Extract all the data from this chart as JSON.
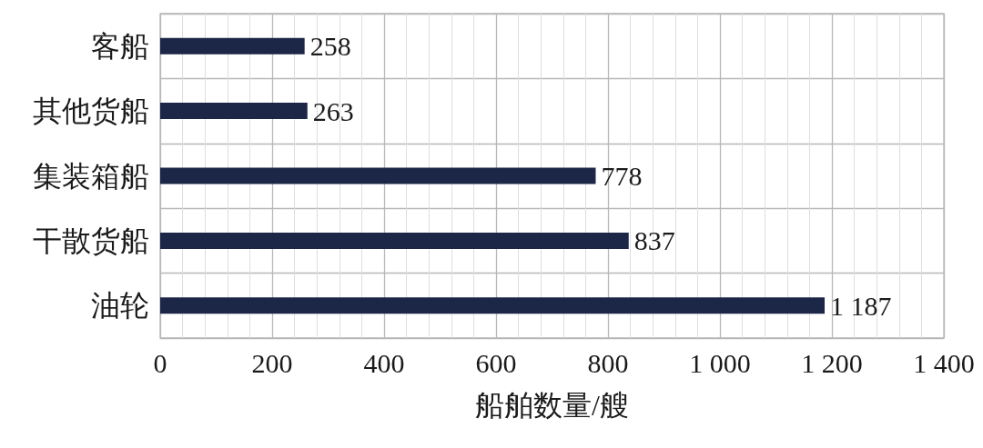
{
  "chart_data": {
    "type": "bar",
    "orientation": "horizontal",
    "xlabel": "船舶数量/艘",
    "categories": [
      "客船",
      "其他货船",
      "集装箱船",
      "干散货船",
      "油轮"
    ],
    "values": [
      258,
      263,
      778,
      837,
      1187
    ],
    "color": "#1c2647",
    "value_labels": [
      "258",
      "263",
      "778",
      "837",
      "1 187"
    ],
    "xlim": [
      0,
      1400
    ],
    "xticks": [
      0,
      200,
      400,
      600,
      800,
      {
        "value": 1000,
        "label": "1 000"
      },
      {
        "value": 1200,
        "label": "1 200"
      },
      {
        "value": 1400,
        "label": "1 400"
      }
    ],
    "grid": true
  }
}
